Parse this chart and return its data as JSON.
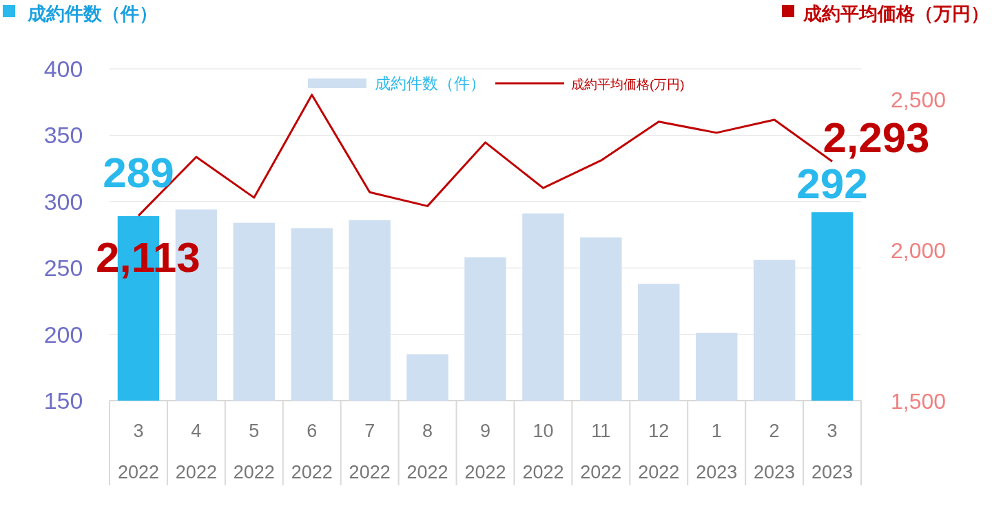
{
  "chart_data": {
    "type": "bar",
    "ylabel": "成約件数（件）",
    "y2label": "成約平均価格（万円）",
    "categories": [
      "3\n2022",
      "4\n2022",
      "5\n2022",
      "6\n2022",
      "7\n2022",
      "8\n2022",
      "9\n2022",
      "10\n2022",
      "11\n2022",
      "12\n2022",
      "1\n2023",
      "2\n2023",
      "3\n2023"
    ],
    "series": [
      {
        "name": "成約件数（件）",
        "color": "#cfdff2",
        "colors": [
          "#29b9ed",
          "#cfdff2",
          "#cfdff2",
          "#cfdff2",
          "#cfdff2",
          "#cfdff2",
          "#cfdff2",
          "#cfdff2",
          "#cfdff2",
          "#cfdff2",
          "#cfdff2",
          "#cfdff2",
          "#29b9ed"
        ],
        "values": [
          289,
          294,
          284,
          280,
          286,
          185,
          258,
          291,
          273,
          238,
          201,
          256,
          292
        ],
        "value_labels": [
          "289",
          null,
          null,
          null,
          null,
          null,
          null,
          null,
          null,
          null,
          null,
          null,
          "292"
        ]
      },
      {
        "name": "成約平均価格(万円)",
        "type": "line",
        "axis": "y2",
        "color": "#c00000",
        "values": [
          2113,
          2308,
          2173,
          2514,
          2191,
          2145,
          2356,
          2205,
          2296,
          2425,
          2388,
          2431,
          2293
        ],
        "value_labels": [
          "2,113",
          null,
          null,
          null,
          null,
          null,
          null,
          null,
          null,
          null,
          null,
          null,
          "2,293"
        ]
      }
    ],
    "ylim": [
      150,
      400
    ],
    "yticks": [
      150,
      200,
      250,
      300,
      350,
      400
    ],
    "y2lim": [
      1500,
      2600
    ],
    "y2ticks": [
      {
        "value": 1500,
        "label": "1,500"
      },
      {
        "value": 2000,
        "label": "2,000"
      },
      {
        "value": 2500,
        "label": "2,500"
      }
    ],
    "grid": "y",
    "legend": "top",
    "marker": "none"
  }
}
